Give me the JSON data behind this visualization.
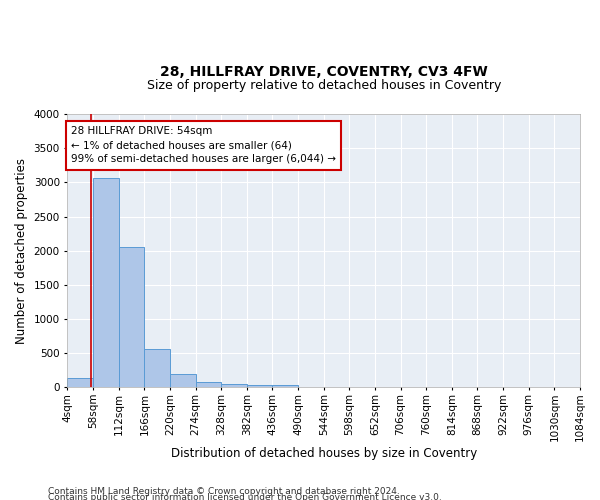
{
  "title1": "28, HILLFRAY DRIVE, COVENTRY, CV3 4FW",
  "title2": "Size of property relative to detached houses in Coventry",
  "xlabel": "Distribution of detached houses by size in Coventry",
  "ylabel": "Number of detached properties",
  "footer1": "Contains HM Land Registry data © Crown copyright and database right 2024.",
  "footer2": "Contains public sector information licensed under the Open Government Licence v3.0.",
  "bar_edges": [
    4,
    58,
    112,
    166,
    220,
    274,
    328,
    382,
    436,
    490,
    544,
    598,
    652,
    706,
    760,
    814,
    868,
    922,
    976,
    1030,
    1084
  ],
  "bar_heights": [
    130,
    3060,
    2060,
    560,
    190,
    80,
    55,
    40,
    40,
    0,
    0,
    0,
    0,
    0,
    0,
    0,
    0,
    0,
    0,
    0
  ],
  "bar_color": "#aec6e8",
  "bar_edge_color": "#5a9bd5",
  "property_line_x": 54,
  "annotation_text": "28 HILLFRAY DRIVE: 54sqm\n← 1% of detached houses are smaller (64)\n99% of semi-detached houses are larger (6,044) →",
  "annotation_box_color": "#ffffff",
  "annotation_border_color": "#cc0000",
  "ylim": [
    0,
    4000
  ],
  "yticks": [
    0,
    500,
    1000,
    1500,
    2000,
    2500,
    3000,
    3500,
    4000
  ],
  "background_color": "#e8eef5",
  "grid_color": "#ffffff",
  "title1_fontsize": 10,
  "title2_fontsize": 9,
  "axis_label_fontsize": 8.5,
  "tick_fontsize": 7.5,
  "footer_fontsize": 6.5
}
